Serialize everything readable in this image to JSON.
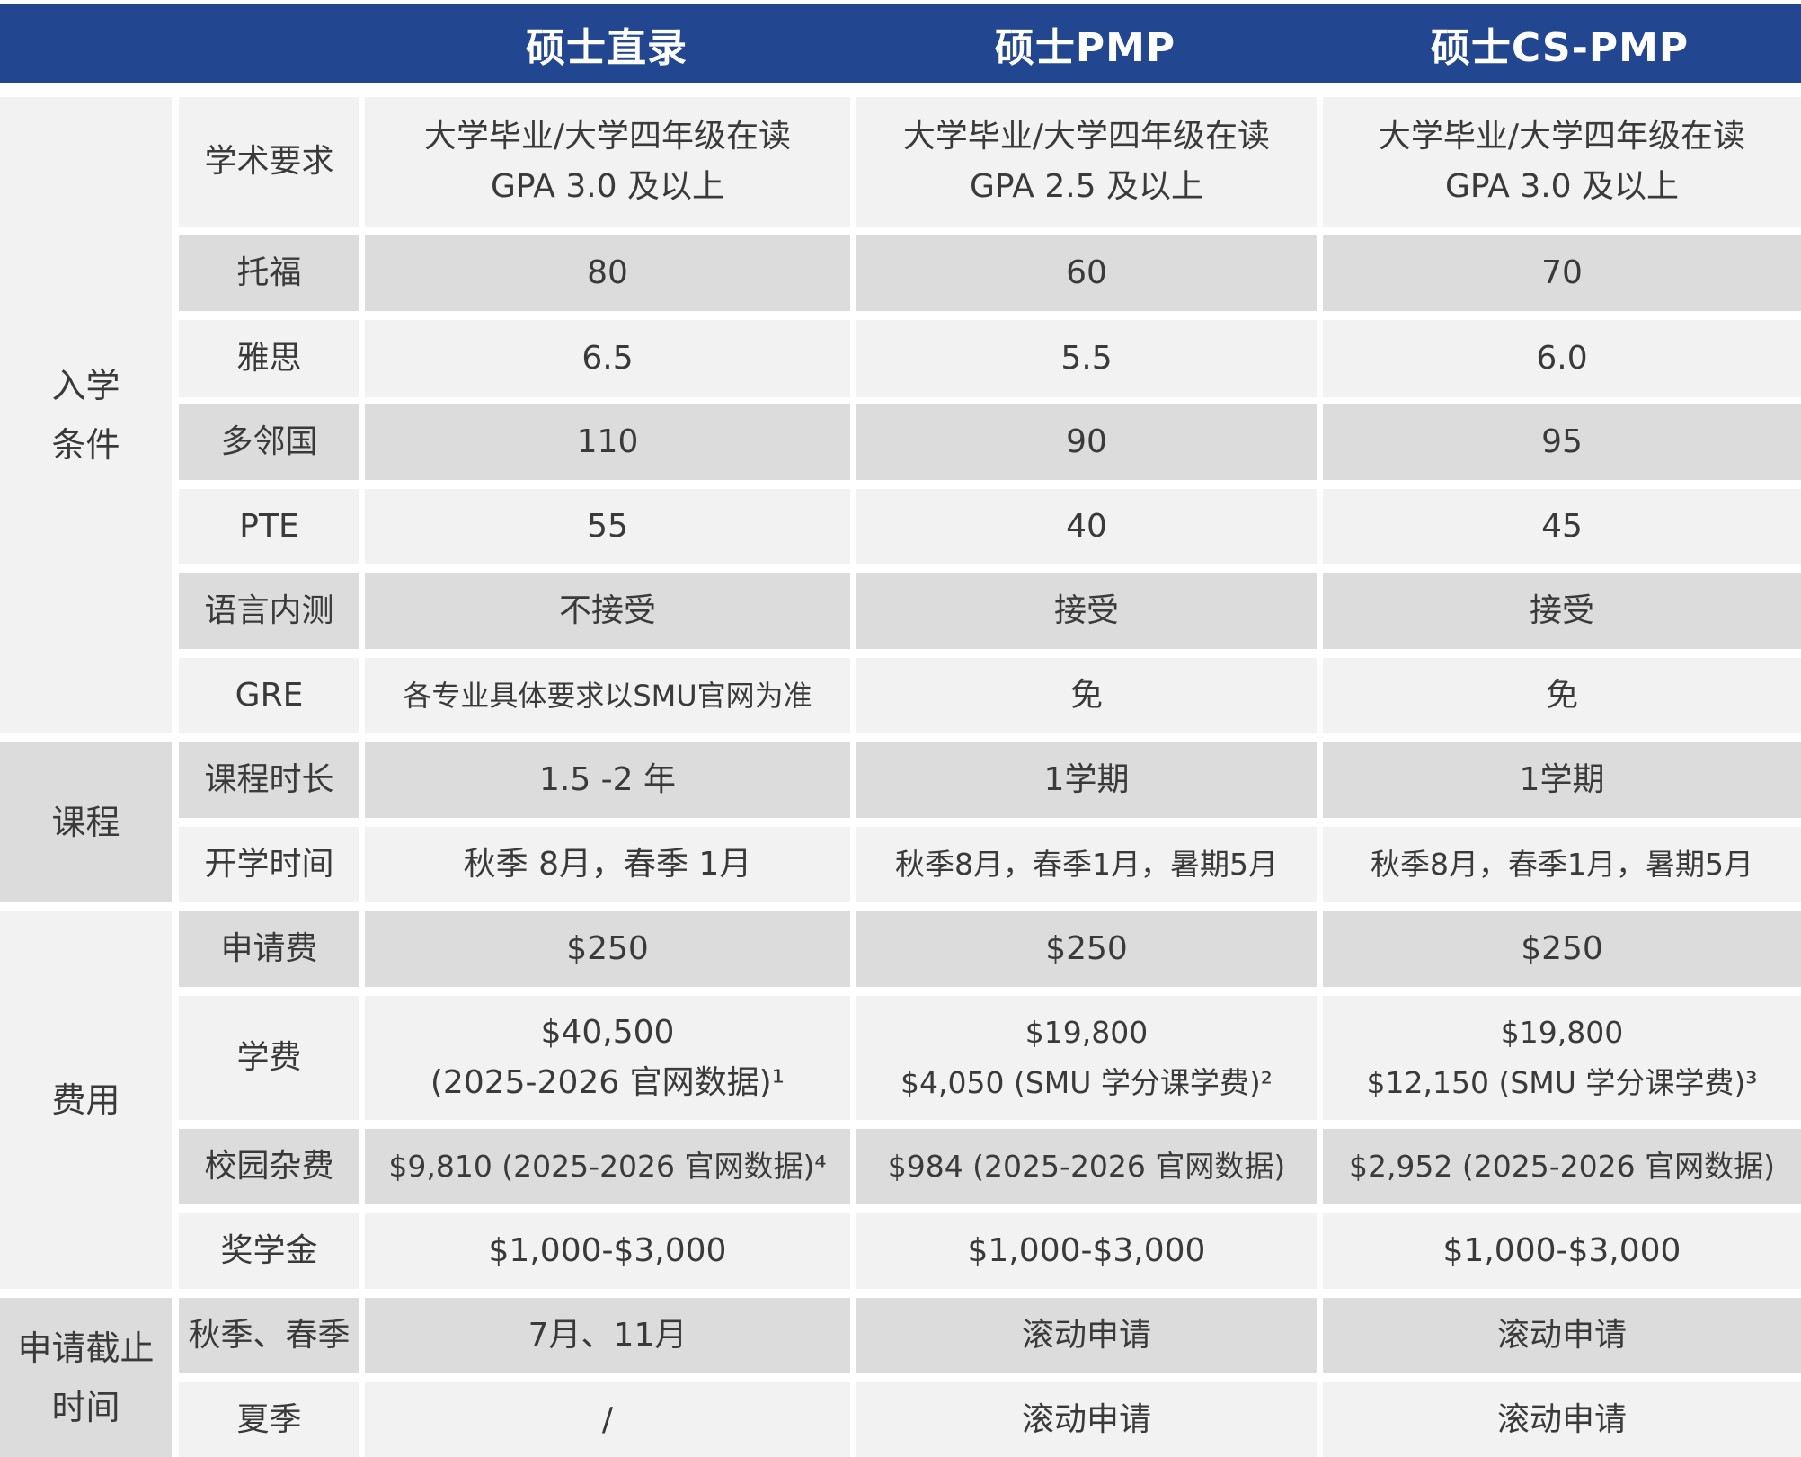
{
  "header": {
    "corner": "",
    "programs": [
      "硕士直录",
      "硕士PMP",
      "硕士CS-PMP"
    ]
  },
  "groups": [
    {
      "label": "入学\n条件"
    },
    {
      "label": "课程"
    },
    {
      "label": "费用"
    },
    {
      "label": "申请截止\n时间"
    }
  ],
  "rows": [
    {
      "label": "学术要求",
      "values": [
        [
          "大学毕业/大学四年级在读",
          "GPA 3.0 及以上"
        ],
        [
          "大学毕业/大学四年级在读",
          "GPA 2.5 及以上"
        ],
        [
          "大学毕业/大学四年级在读",
          "GPA 3.0 及以上"
        ]
      ]
    },
    {
      "label": "托福",
      "values": [
        [
          "80"
        ],
        [
          "60"
        ],
        [
          "70"
        ]
      ]
    },
    {
      "label": "雅思",
      "values": [
        [
          "6.5"
        ],
        [
          "5.5"
        ],
        [
          "6.0"
        ]
      ]
    },
    {
      "label": "多邻国",
      "values": [
        [
          "110"
        ],
        [
          "90"
        ],
        [
          "95"
        ]
      ]
    },
    {
      "label": "PTE",
      "values": [
        [
          "55"
        ],
        [
          "40"
        ],
        [
          "45"
        ]
      ]
    },
    {
      "label": "语言内测",
      "values": [
        [
          "不接受"
        ],
        [
          "接受"
        ],
        [
          "接受"
        ]
      ]
    },
    {
      "label": "GRE",
      "values": [
        [
          "各专业具体要求以SMU官网为准"
        ],
        [
          "免"
        ],
        [
          "免"
        ]
      ]
    },
    {
      "label": "课程时长",
      "values": [
        [
          "1.5 -2 年"
        ],
        [
          "1学期"
        ],
        [
          "1学期"
        ]
      ]
    },
    {
      "label": "开学时间",
      "values": [
        [
          "秋季 8月，春季 1月"
        ],
        [
          "秋季8月，春季1月，暑期5月"
        ],
        [
          "秋季8月，春季1月，暑期5月"
        ]
      ]
    },
    {
      "label": "申请费",
      "values": [
        [
          "$250"
        ],
        [
          "$250"
        ],
        [
          "$250"
        ]
      ]
    },
    {
      "label": "学费",
      "values": [
        [
          "$40,500",
          "(2025-2026 官网数据)¹"
        ],
        [
          "$19,800",
          "$4,050 (SMU 学分课学费)²"
        ],
        [
          "$19,800",
          "$12,150 (SMU 学分课学费)³"
        ]
      ]
    },
    {
      "label": "校园杂费",
      "values": [
        [
          "$9,810 (2025-2026 官网数据)⁴"
        ],
        [
          "$984 (2025-2026 官网数据)"
        ],
        [
          "$2,952 (2025-2026 官网数据)"
        ]
      ]
    },
    {
      "label": "奖学金",
      "values": [
        [
          "$1,000-$3,000"
        ],
        [
          "$1,000-$3,000"
        ],
        [
          "$1,000-$3,000"
        ]
      ]
    },
    {
      "label": "秋季、春季",
      "values": [
        [
          "7月、11月"
        ],
        [
          "滚动申请"
        ],
        [
          "滚动申请"
        ]
      ]
    },
    {
      "label": "夏季",
      "values": [
        [
          "/"
        ],
        [
          "滚动申请"
        ],
        [
          "滚动申请"
        ]
      ]
    }
  ],
  "colors": {
    "header_bg": "#22468f",
    "row_light": "#f2f2f2",
    "row_dark": "#dcdcdc"
  }
}
